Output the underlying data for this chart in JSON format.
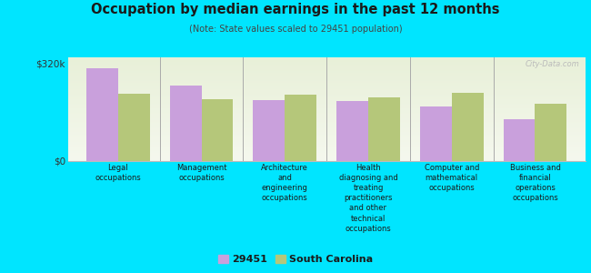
{
  "title": "Occupation by median earnings in the past 12 months",
  "subtitle": "(Note: State values scaled to 29451 population)",
  "background_outer": "#00e5ff",
  "background_inner_top": "#e8f0d8",
  "background_inner_bottom": "#f5f8ee",
  "categories": [
    "Legal\noccupations",
    "Management\noccupations",
    "Architecture\nand\nengineering\noccupations",
    "Health\ndiagnosing and\ntreating\npractitioners\nand other\ntechnical\noccupations",
    "Computer and\nmathematical\noccupations",
    "Business and\nfinancial\noperations\noccupations"
  ],
  "values_29451": [
    305000,
    248000,
    200000,
    198000,
    178000,
    138000
  ],
  "values_sc": [
    222000,
    202000,
    218000,
    210000,
    225000,
    188000
  ],
  "ylim": [
    0,
    340000
  ],
  "yticks": [
    0,
    320000
  ],
  "ytick_labels": [
    "$0",
    "$320k"
  ],
  "color_29451": "#c9a0dc",
  "color_sc": "#b5c77a",
  "legend_labels": [
    "29451",
    "South Carolina"
  ],
  "watermark": "City-Data.com",
  "bar_width": 0.38
}
